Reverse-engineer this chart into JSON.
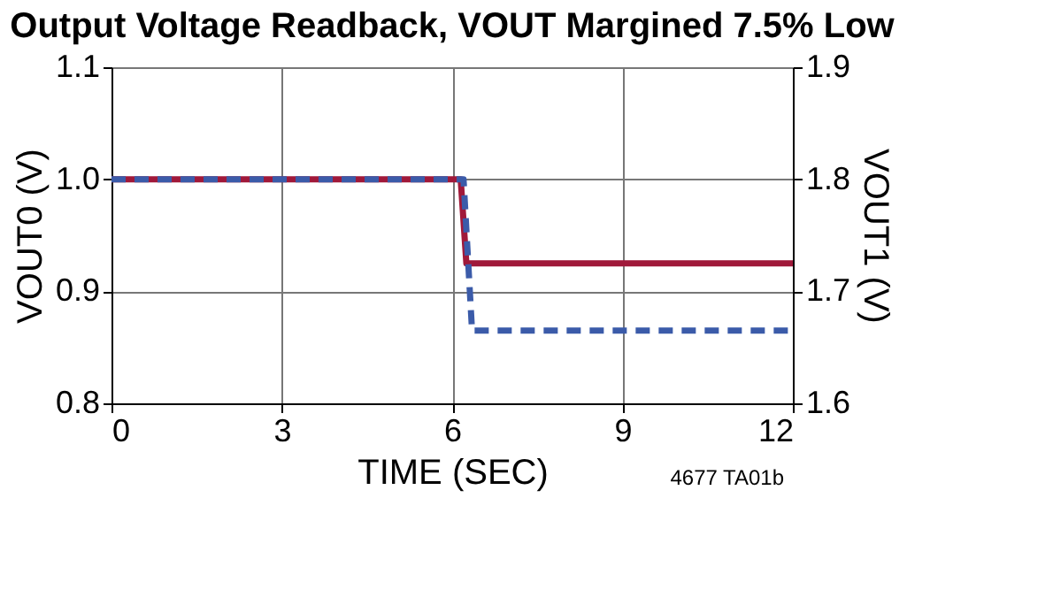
{
  "chart_data": {
    "type": "line",
    "title": "Output Voltage Readback, VOUT Margined 7.5% Low",
    "xlabel": "TIME (SEC)",
    "ylabel": "VOUT0 (V)",
    "y2label": "VOUT1 (V)",
    "xlim": [
      0,
      12
    ],
    "xticks": [
      0,
      3,
      6,
      9,
      12
    ],
    "ylim": [
      0.8,
      1.1
    ],
    "yticks": [
      0.8,
      0.9,
      {
        "value": 1,
        "label": "1.0"
      },
      1.1
    ],
    "y2lim": [
      1.6,
      1.9
    ],
    "y2ticks": [
      1.6,
      1.7,
      1.8,
      1.9
    ],
    "grid": true,
    "legend": false,
    "series": [
      {
        "color": "#a0193a",
        "line_style": "solid",
        "x": [
          0,
          6.15,
          6.25,
          12
        ],
        "values": [
          1.0,
          1.0,
          0.925,
          0.925
        ]
      },
      {
        "color": "#3b5ba9",
        "line_style": "dashed",
        "axis": "y2",
        "x": [
          0,
          6.2,
          6.35,
          12
        ],
        "values": [
          1.8,
          1.8,
          1.665,
          1.665
        ]
      }
    ],
    "annotations": [
      "4677 TA01b"
    ]
  }
}
